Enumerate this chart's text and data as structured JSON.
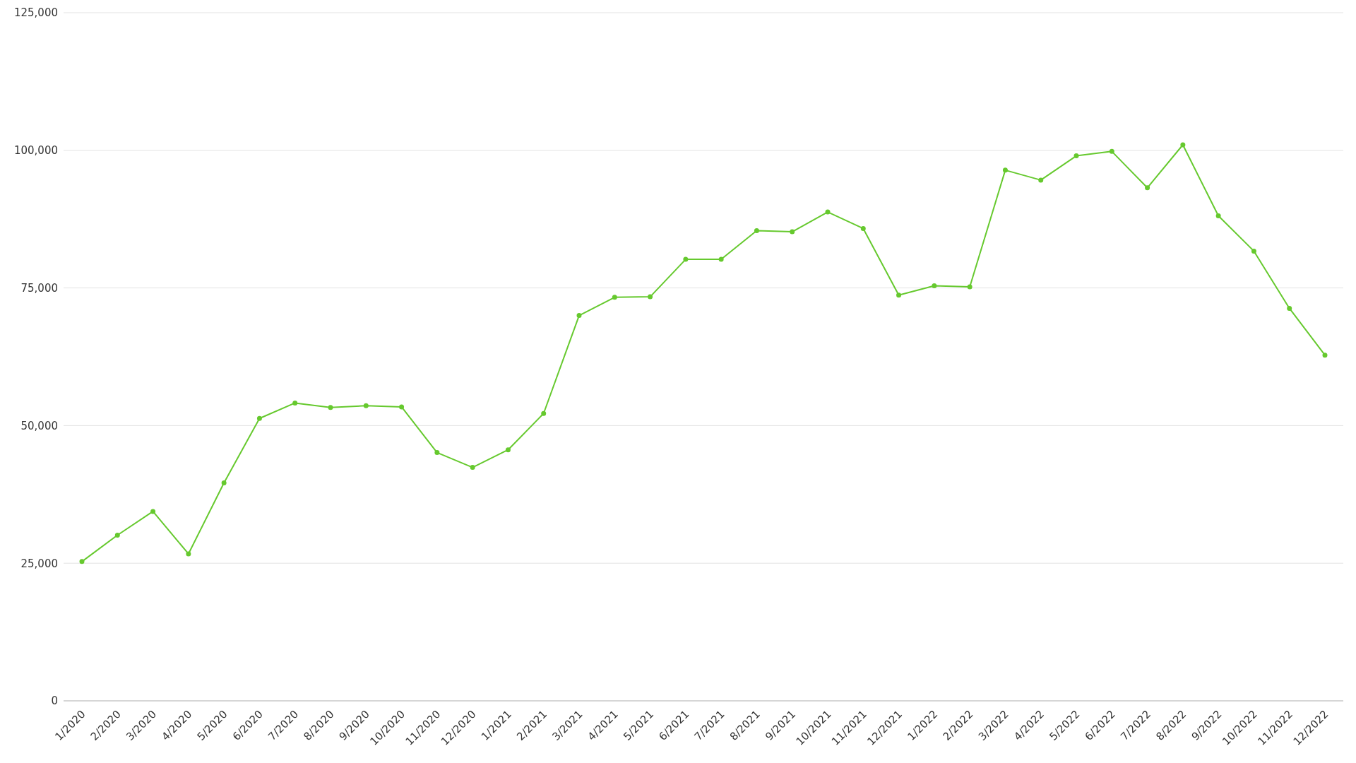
{
  "chart_data": {
    "type": "line",
    "categories": [
      "1/2020",
      "2/2020",
      "3/2020",
      "4/2020",
      "5/2020",
      "6/2020",
      "7/2020",
      "8/2020",
      "9/2020",
      "10/2020",
      "11/2020",
      "12/2020",
      "1/2021",
      "2/2021",
      "3/2021",
      "4/2021",
      "5/2021",
      "6/2021",
      "7/2021",
      "8/2021",
      "9/2021",
      "10/2021",
      "11/2021",
      "12/2021",
      "1/2022",
      "2/2022",
      "3/2022",
      "4/2022",
      "5/2022",
      "6/2022",
      "7/2022",
      "8/2022",
      "9/2022",
      "10/2022",
      "11/2022",
      "12/2022"
    ],
    "series": [
      {
        "color": "#66c92e",
        "values": [
          25300,
          30100,
          34400,
          26700,
          39600,
          51300,
          54100,
          53300,
          53600,
          53400,
          45100,
          42400,
          45600,
          52200,
          70000,
          73300,
          73400,
          80200,
          80200,
          85400,
          85200,
          88800,
          85800,
          73700,
          75400,
          75200,
          96400,
          94600,
          99000,
          99800,
          93200,
          101000,
          88100,
          81700,
          71300,
          62800
        ]
      }
    ],
    "ylim": [
      0,
      125000
    ],
    "yticks": [
      {
        "value": 0,
        "label": "0"
      },
      {
        "value": 25000,
        "label": "25,000"
      },
      {
        "value": 50000,
        "label": "50,000"
      },
      {
        "value": 75000,
        "label": "75,000"
      },
      {
        "value": 100000,
        "label": "100,000"
      },
      {
        "value": 125000,
        "label": "125,000"
      }
    ],
    "grid": "y",
    "marker": "circle",
    "line_style": "solid",
    "legend": false
  }
}
